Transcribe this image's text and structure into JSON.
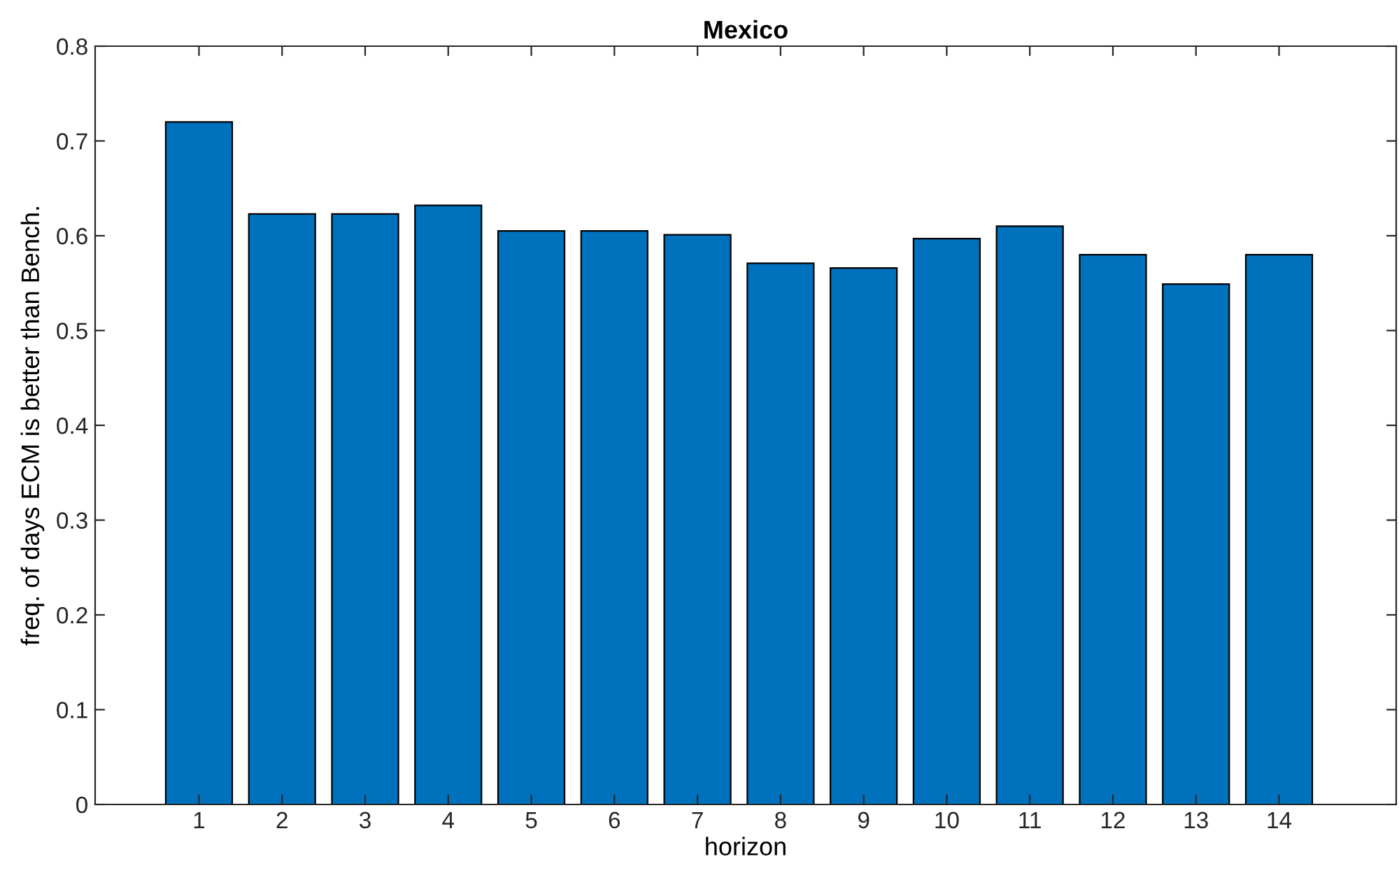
{
  "chart_data": {
    "type": "bar",
    "title": "Mexico",
    "xlabel": "horizon",
    "ylabel": "freq. of days ECM is better than Bench.",
    "categories": [
      "1",
      "2",
      "3",
      "4",
      "5",
      "6",
      "7",
      "8",
      "9",
      "10",
      "11",
      "12",
      "13",
      "14"
    ],
    "values": [
      0.72,
      0.623,
      0.623,
      0.632,
      0.605,
      0.605,
      0.601,
      0.571,
      0.566,
      0.597,
      0.61,
      0.58,
      0.549,
      0.58
    ],
    "color": "#0072bd",
    "ylim": [
      0,
      0.8
    ],
    "yticks": [
      0,
      0.1,
      0.2,
      0.3,
      0.4,
      0.5,
      0.6,
      0.7,
      0.8
    ],
    "grid": false,
    "legend": false
  }
}
